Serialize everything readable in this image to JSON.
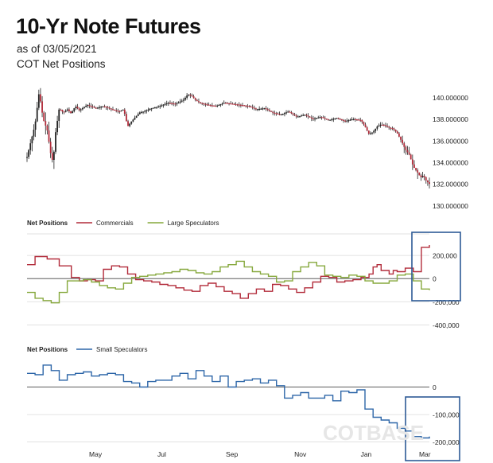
{
  "header": {
    "title": "10-Yr Note Futures",
    "asof": "as of 03/05/2021",
    "subtitle": "COT Net Positions"
  },
  "colors": {
    "price": "#222222",
    "commercials": "#b22b3a",
    "large_specs": "#86a83c",
    "small_specs": "#2d66a8",
    "highlight": "#2d5a96",
    "grid": "#d9d9d9"
  },
  "watermark": "COTBASE",
  "x_axis": {
    "months": [
      "May",
      "Jul",
      "Sep",
      "Nov",
      "Jan",
      "Mar"
    ]
  },
  "chart_data": [
    {
      "type": "candlestick",
      "title": "10-Yr Note Futures",
      "ylim": [
        129,
        141.5
      ],
      "yticks": [
        "130.000000",
        "132.000000",
        "134.000000",
        "136.000000",
        "138.000000",
        "140.000000"
      ],
      "x_range": [
        0,
        100
      ],
      "price_path": [
        [
          0,
          134.5
        ],
        [
          1,
          136
        ],
        [
          2,
          137.5
        ],
        [
          3,
          140.5
        ],
        [
          4,
          138
        ],
        [
          5,
          137
        ],
        [
          6,
          134.5
        ],
        [
          6.5,
          134
        ],
        [
          7,
          136.5
        ],
        [
          8,
          139
        ],
        [
          9,
          138.6
        ],
        [
          10,
          138.9
        ],
        [
          11,
          138.5
        ],
        [
          12,
          139.2
        ],
        [
          13,
          138.8
        ],
        [
          15,
          139.3
        ],
        [
          17,
          139
        ],
        [
          19,
          139.2
        ],
        [
          21,
          138.9
        ],
        [
          23,
          138.7
        ],
        [
          24,
          138.9
        ],
        [
          25,
          137.3
        ],
        [
          26,
          137.8
        ],
        [
          27,
          138.2
        ],
        [
          28,
          138.6
        ],
        [
          29,
          138.7
        ],
        [
          31,
          139
        ],
        [
          33,
          139.2
        ],
        [
          35,
          139.5
        ],
        [
          37,
          139.4
        ],
        [
          39,
          139.8
        ],
        [
          40,
          140.3
        ],
        [
          41,
          140.1
        ],
        [
          42,
          139.7
        ],
        [
          43,
          139.5
        ],
        [
          45,
          139.3
        ],
        [
          47,
          139.2
        ],
        [
          49,
          139.5
        ],
        [
          51,
          139.4
        ],
        [
          53,
          139.3
        ],
        [
          55,
          139.2
        ],
        [
          57,
          138.9
        ],
        [
          59,
          139
        ],
        [
          61,
          138.6
        ],
        [
          63,
          138.4
        ],
        [
          65,
          138.7
        ],
        [
          67,
          138.2
        ],
        [
          69,
          138.4
        ],
        [
          71,
          138
        ],
        [
          73,
          138.2
        ],
        [
          75,
          137.9
        ],
        [
          77,
          138.1
        ],
        [
          79,
          137.8
        ],
        [
          81,
          138
        ],
        [
          83,
          137.9
        ],
        [
          84,
          137.3
        ],
        [
          85,
          136.6
        ],
        [
          86,
          136.8
        ],
        [
          87,
          137.3
        ],
        [
          88,
          137.5
        ],
        [
          89,
          137.4
        ],
        [
          90,
          137.2
        ],
        [
          91,
          137.1
        ],
        [
          92,
          136.7
        ],
        [
          93,
          136
        ],
        [
          94,
          135.2
        ],
        [
          95,
          134.7
        ],
        [
          96,
          133.6
        ],
        [
          97,
          133.1
        ],
        [
          97.8,
          132.6
        ],
        [
          98.5,
          132.8
        ],
        [
          99.2,
          132.3
        ],
        [
          100,
          132
        ]
      ]
    },
    {
      "type": "line",
      "title": "Net Positions",
      "legend": [
        "Commercials",
        "Large Speculators"
      ],
      "ylim": [
        -480000,
        400000
      ],
      "yticks": [
        {
          "value": 200000,
          "label": "200,000"
        },
        {
          "value": 0,
          "label": "0"
        },
        {
          "value": -200000,
          "label": "-200,000"
        },
        {
          "value": -400000,
          "label": "-400,000"
        }
      ],
      "series": [
        {
          "name": "Commercials",
          "points": [
            [
              0,
              120000
            ],
            [
              2,
              190000
            ],
            [
              5,
              170000
            ],
            [
              8,
              110000
            ],
            [
              11,
              10000
            ],
            [
              13,
              -20000
            ],
            [
              15,
              -10000
            ],
            [
              17,
              -20000
            ],
            [
              19,
              80000
            ],
            [
              21,
              110000
            ],
            [
              23,
              100000
            ],
            [
              25,
              40000
            ],
            [
              27,
              -10000
            ],
            [
              29,
              -20000
            ],
            [
              31,
              -30000
            ],
            [
              33,
              -50000
            ],
            [
              35,
              -60000
            ],
            [
              37,
              -80000
            ],
            [
              39,
              -100000
            ],
            [
              41,
              -110000
            ],
            [
              43,
              -60000
            ],
            [
              45,
              -40000
            ],
            [
              47,
              -70000
            ],
            [
              49,
              -110000
            ],
            [
              51,
              -130000
            ],
            [
              53,
              -170000
            ],
            [
              55,
              -130000
            ],
            [
              57,
              -90000
            ],
            [
              59,
              -110000
            ],
            [
              61,
              -50000
            ],
            [
              63,
              -60000
            ],
            [
              65,
              -90000
            ],
            [
              67,
              -120000
            ],
            [
              69,
              -80000
            ],
            [
              71,
              -30000
            ],
            [
              73,
              20000
            ],
            [
              75,
              10000
            ],
            [
              77,
              -30000
            ],
            [
              79,
              -20000
            ],
            [
              81,
              -10000
            ],
            [
              83,
              10000
            ],
            [
              85,
              40000
            ],
            [
              86,
              100000
            ],
            [
              87,
              120000
            ],
            [
              88,
              70000
            ],
            [
              90,
              40000
            ],
            [
              91,
              70000
            ],
            [
              92,
              60000
            ],
            [
              94,
              90000
            ],
            [
              96,
              60000
            ],
            [
              98,
              270000
            ],
            [
              100,
              290000
            ]
          ]
        },
        {
          "name": "Large Speculators",
          "points": [
            [
              0,
              -120000
            ],
            [
              2,
              -170000
            ],
            [
              4,
              -190000
            ],
            [
              6,
              -210000
            ],
            [
              8,
              -120000
            ],
            [
              10,
              -20000
            ],
            [
              12,
              -20000
            ],
            [
              14,
              -10000
            ],
            [
              16,
              -30000
            ],
            [
              18,
              -60000
            ],
            [
              20,
              -80000
            ],
            [
              22,
              -90000
            ],
            [
              24,
              -40000
            ],
            [
              26,
              10000
            ],
            [
              28,
              20000
            ],
            [
              30,
              30000
            ],
            [
              32,
              40000
            ],
            [
              34,
              50000
            ],
            [
              36,
              60000
            ],
            [
              38,
              80000
            ],
            [
              40,
              70000
            ],
            [
              42,
              50000
            ],
            [
              44,
              40000
            ],
            [
              46,
              60000
            ],
            [
              48,
              100000
            ],
            [
              50,
              120000
            ],
            [
              52,
              150000
            ],
            [
              54,
              100000
            ],
            [
              56,
              60000
            ],
            [
              58,
              40000
            ],
            [
              60,
              20000
            ],
            [
              62,
              -30000
            ],
            [
              64,
              -20000
            ],
            [
              66,
              60000
            ],
            [
              68,
              100000
            ],
            [
              70,
              140000
            ],
            [
              72,
              110000
            ],
            [
              74,
              30000
            ],
            [
              76,
              20000
            ],
            [
              78,
              10000
            ],
            [
              80,
              30000
            ],
            [
              82,
              20000
            ],
            [
              84,
              -20000
            ],
            [
              86,
              -40000
            ],
            [
              88,
              -40000
            ],
            [
              90,
              -20000
            ],
            [
              92,
              30000
            ],
            [
              94,
              40000
            ],
            [
              96,
              -20000
            ],
            [
              98,
              -90000
            ],
            [
              100,
              -100000
            ]
          ]
        }
      ]
    },
    {
      "type": "line",
      "title": "Net Positions",
      "legend": [
        "Small Speculators"
      ],
      "ylim": [
        -230000,
        100000
      ],
      "yticks": [
        {
          "value": 0,
          "label": "0"
        },
        {
          "value": -100000,
          "label": "-100,000"
        },
        {
          "value": -200000,
          "label": "-200,000"
        }
      ],
      "series": [
        {
          "name": "Small Speculators",
          "points": [
            [
              0,
              50000
            ],
            [
              2,
              45000
            ],
            [
              4,
              80000
            ],
            [
              6,
              60000
            ],
            [
              8,
              25000
            ],
            [
              10,
              45000
            ],
            [
              12,
              50000
            ],
            [
              14,
              55000
            ],
            [
              16,
              40000
            ],
            [
              18,
              45000
            ],
            [
              20,
              50000
            ],
            [
              22,
              45000
            ],
            [
              24,
              20000
            ],
            [
              26,
              15000
            ],
            [
              28,
              0
            ],
            [
              30,
              20000
            ],
            [
              32,
              25000
            ],
            [
              34,
              25000
            ],
            [
              36,
              40000
            ],
            [
              38,
              50000
            ],
            [
              40,
              30000
            ],
            [
              42,
              60000
            ],
            [
              44,
              40000
            ],
            [
              46,
              20000
            ],
            [
              48,
              40000
            ],
            [
              50,
              0
            ],
            [
              52,
              20000
            ],
            [
              54,
              25000
            ],
            [
              56,
              30000
            ],
            [
              58,
              15000
            ],
            [
              60,
              25000
            ],
            [
              62,
              5000
            ],
            [
              64,
              -40000
            ],
            [
              66,
              -30000
            ],
            [
              68,
              -20000
            ],
            [
              70,
              -40000
            ],
            [
              72,
              -40000
            ],
            [
              74,
              -30000
            ],
            [
              76,
              -50000
            ],
            [
              78,
              -15000
            ],
            [
              80,
              -20000
            ],
            [
              82,
              -10000
            ],
            [
              84,
              -80000
            ],
            [
              86,
              -110000
            ],
            [
              88,
              -120000
            ],
            [
              90,
              -130000
            ],
            [
              92,
              -150000
            ],
            [
              94,
              -160000
            ],
            [
              96,
              -180000
            ],
            [
              98,
              -185000
            ],
            [
              100,
              -180000
            ]
          ]
        }
      ]
    }
  ]
}
